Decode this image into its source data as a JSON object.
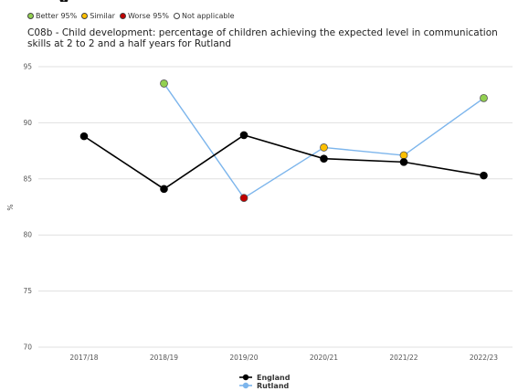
{
  "top_fragment": "y",
  "significance_key": [
    {
      "label": "Better 95%",
      "color": "#92d050"
    },
    {
      "label": "Similar",
      "color": "#ffc000"
    },
    {
      "label": "Worse 95%",
      "color": "#c00000"
    },
    {
      "label": "Not applicable",
      "color": "#ffffff"
    }
  ],
  "chart_data": {
    "type": "line",
    "title": "C08b - Child development: percentage of children achieving the expected level in communication skills at 2 to 2 and a half years for Rutland",
    "xlabel": "",
    "ylabel": "%",
    "categories": [
      "2017/18",
      "2018/19",
      "2019/20",
      "2020/21",
      "2021/22",
      "2022/23"
    ],
    "ylim": [
      70,
      95
    ],
    "yticks": [
      70,
      75,
      80,
      85,
      90,
      95
    ],
    "grid": true,
    "legend_position": "bottom",
    "series": [
      {
        "name": "England",
        "color": "#000000",
        "values": [
          88.8,
          84.1,
          88.9,
          86.8,
          86.5,
          85.3
        ],
        "point_colors": [
          "#000000",
          "#000000",
          "#000000",
          "#000000",
          "#000000",
          "#000000"
        ]
      },
      {
        "name": "Rutland",
        "color": "#7cb5ec",
        "values": [
          null,
          93.5,
          83.3,
          87.8,
          87.1,
          92.2
        ],
        "point_colors": [
          null,
          "#92d050",
          "#c00000",
          "#ffc000",
          "#ffc000",
          "#92d050"
        ]
      }
    ]
  }
}
